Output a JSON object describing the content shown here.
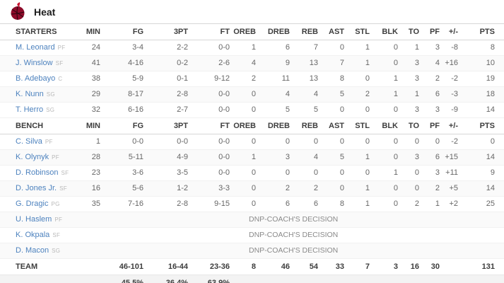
{
  "team": {
    "name": "Heat",
    "logo": "heat-flaming-ball"
  },
  "colors": {
    "link_blue": "#4d82be",
    "logo_maroon": "#8e0b2a",
    "logo_flame": "#c8102e",
    "alt_row": "#fafafa",
    "pct_row_bg": "#f3f3f3"
  },
  "table": {
    "starters_label": "STARTERS",
    "bench_label": "BENCH",
    "team_label": "TEAM",
    "dnp_text": "DNP-COACH'S DECISION",
    "columns": [
      "MIN",
      "FG",
      "3PT",
      "FT",
      "OREB",
      "DREB",
      "REB",
      "AST",
      "STL",
      "BLK",
      "TO",
      "PF",
      "+/-",
      "PTS"
    ],
    "starters": [
      {
        "name": "M. Leonard",
        "pos": "PF",
        "stats": [
          "24",
          "3-4",
          "2-2",
          "0-0",
          "1",
          "6",
          "7",
          "0",
          "1",
          "0",
          "1",
          "3",
          "-8",
          "8"
        ]
      },
      {
        "name": "J. Winslow",
        "pos": "SF",
        "stats": [
          "41",
          "4-16",
          "0-2",
          "2-6",
          "4",
          "9",
          "13",
          "7",
          "1",
          "0",
          "3",
          "4",
          "+16",
          "10"
        ]
      },
      {
        "name": "B. Adebayo",
        "pos": "C",
        "stats": [
          "38",
          "5-9",
          "0-1",
          "9-12",
          "2",
          "11",
          "13",
          "8",
          "0",
          "1",
          "3",
          "2",
          "-2",
          "19"
        ]
      },
      {
        "name": "K. Nunn",
        "pos": "SG",
        "stats": [
          "29",
          "8-17",
          "2-8",
          "0-0",
          "0",
          "4",
          "4",
          "5",
          "2",
          "1",
          "1",
          "6",
          "-3",
          "18"
        ]
      },
      {
        "name": "T. Herro",
        "pos": "SG",
        "stats": [
          "32",
          "6-16",
          "2-7",
          "0-0",
          "0",
          "5",
          "5",
          "0",
          "0",
          "0",
          "3",
          "3",
          "-9",
          "14"
        ]
      }
    ],
    "bench": [
      {
        "name": "C. Silva",
        "pos": "PF",
        "stats": [
          "1",
          "0-0",
          "0-0",
          "0-0",
          "0",
          "0",
          "0",
          "0",
          "0",
          "0",
          "0",
          "0",
          "-2",
          "0"
        ]
      },
      {
        "name": "K. Olynyk",
        "pos": "PF",
        "stats": [
          "28",
          "5-11",
          "4-9",
          "0-0",
          "1",
          "3",
          "4",
          "5",
          "1",
          "0",
          "3",
          "6",
          "+15",
          "14"
        ]
      },
      {
        "name": "D. Robinson",
        "pos": "SF",
        "stats": [
          "23",
          "3-6",
          "3-5",
          "0-0",
          "0",
          "0",
          "0",
          "0",
          "0",
          "1",
          "0",
          "3",
          "+11",
          "9"
        ]
      },
      {
        "name": "D. Jones Jr.",
        "pos": "SF",
        "stats": [
          "16",
          "5-6",
          "1-2",
          "3-3",
          "0",
          "2",
          "2",
          "0",
          "1",
          "0",
          "0",
          "2",
          "+5",
          "14"
        ]
      },
      {
        "name": "G. Dragic",
        "pos": "PG",
        "stats": [
          "35",
          "7-16",
          "2-8",
          "9-15",
          "0",
          "6",
          "6",
          "8",
          "1",
          "0",
          "2",
          "1",
          "+2",
          "25"
        ]
      },
      {
        "name": "U. Haslem",
        "pos": "PF",
        "dnp": true
      },
      {
        "name": "K. Okpala",
        "pos": "SF",
        "dnp": true
      },
      {
        "name": "D. Macon",
        "pos": "SG",
        "dnp": true
      }
    ],
    "totals": [
      "",
      "46-101",
      "16-44",
      "23-36",
      "8",
      "46",
      "54",
      "33",
      "7",
      "3",
      "16",
      "30",
      "",
      "131"
    ],
    "percentages": [
      "",
      "45.5%",
      "36.4%",
      "63.9%",
      "",
      "",
      "",
      "",
      "",
      "",
      "",
      "",
      "",
      ""
    ]
  }
}
